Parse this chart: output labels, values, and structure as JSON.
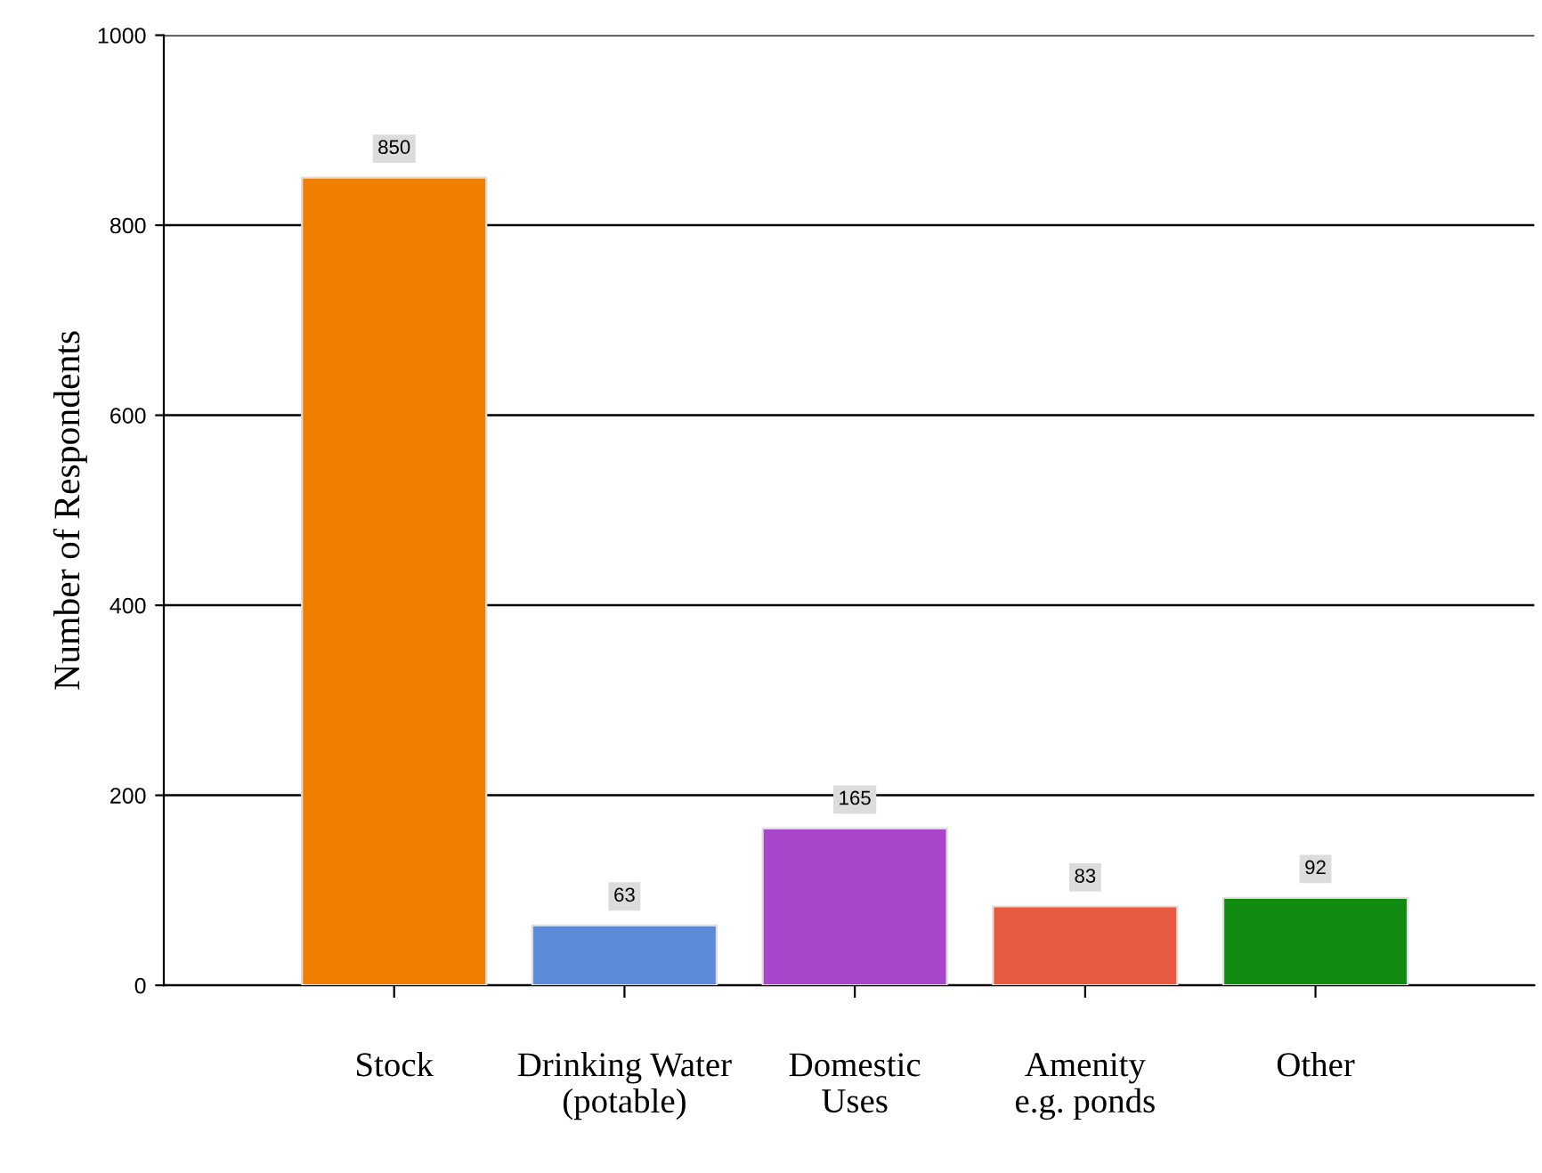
{
  "chart_data": {
    "type": "bar",
    "ylabel": "Number of Respondents",
    "categories": [
      "Stock",
      "Drinking Water\n(potable)",
      "Domestic\nUses",
      "Amenity\ne.g. ponds",
      "Other"
    ],
    "values": [
      850,
      63,
      165,
      83,
      92
    ],
    "colors": [
      "#f07e00",
      "#5b8ad8",
      "#a845c8",
      "#e85a40",
      "#118a11"
    ],
    "ylim": [
      0,
      1000
    ],
    "yticks": [
      0,
      200,
      400,
      600,
      800,
      1000
    ],
    "grid": "y",
    "data_labels": true
  }
}
